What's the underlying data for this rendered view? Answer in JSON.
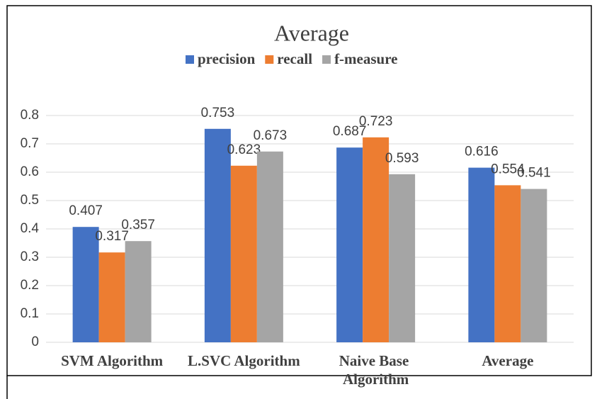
{
  "chart_data": {
    "type": "bar",
    "title": "Average",
    "categories": [
      "SVM  Algorithm",
      "L.SVC Algorithm",
      "Naive Base Algorithm",
      "Average"
    ],
    "series": [
      {
        "name": "precision",
        "color": "#4472c4",
        "values": [
          0.407,
          0.753,
          0.687,
          0.616
        ]
      },
      {
        "name": "recall",
        "color": "#ed7d31",
        "values": [
          0.317,
          0.623,
          0.723,
          0.554
        ]
      },
      {
        "name": "f-measure",
        "color": "#a5a5a5",
        "values": [
          0.357,
          0.673,
          0.593,
          0.541
        ]
      }
    ],
    "ylim": [
      0,
      0.8
    ],
    "yticks": [
      0,
      0.1,
      0.2,
      0.3,
      0.4,
      0.5,
      0.6,
      0.7,
      0.8
    ],
    "grid": true
  }
}
